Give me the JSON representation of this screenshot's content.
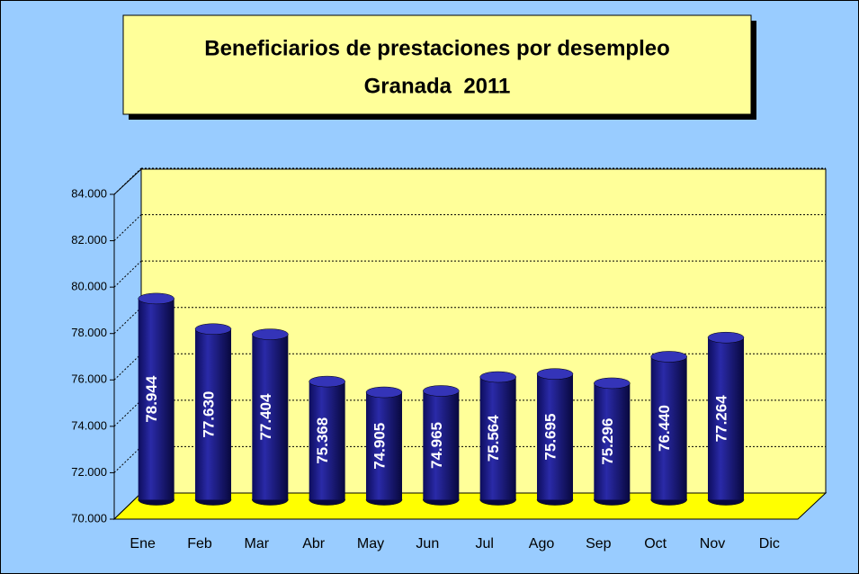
{
  "chart_data": {
    "type": "bar3d",
    "title": "Beneficiarios de prestaciones por desempleo",
    "subtitle": "Granada  2011",
    "categories": [
      "Ene",
      "Feb",
      "Mar",
      "Abr",
      "May",
      "Jun",
      "Jul",
      "Ago",
      "Sep",
      "Oct",
      "Nov",
      "Dic"
    ],
    "values": [
      78944,
      77630,
      77404,
      75368,
      74905,
      74965,
      75564,
      75695,
      75296,
      76440,
      77264,
      null
    ],
    "value_labels": [
      "78.944",
      "77.630",
      "77.404",
      "75.368",
      "74.905",
      "74.965",
      "75.564",
      "75.695",
      "75.296",
      "76.440",
      "77.264",
      null
    ],
    "color": "#1a1a8c",
    "ylim": [
      70000,
      84000
    ],
    "yticks": [
      {
        "value": 70000,
        "label": "70.000"
      },
      {
        "value": 72000,
        "label": "72.000"
      },
      {
        "value": 74000,
        "label": "74.000"
      },
      {
        "value": 76000,
        "label": "76.000"
      },
      {
        "value": 78000,
        "label": "78.000"
      },
      {
        "value": 80000,
        "label": "80.000"
      },
      {
        "value": 82000,
        "label": "82.000"
      },
      {
        "value": 84000,
        "label": "84.000"
      }
    ],
    "grid": true
  }
}
